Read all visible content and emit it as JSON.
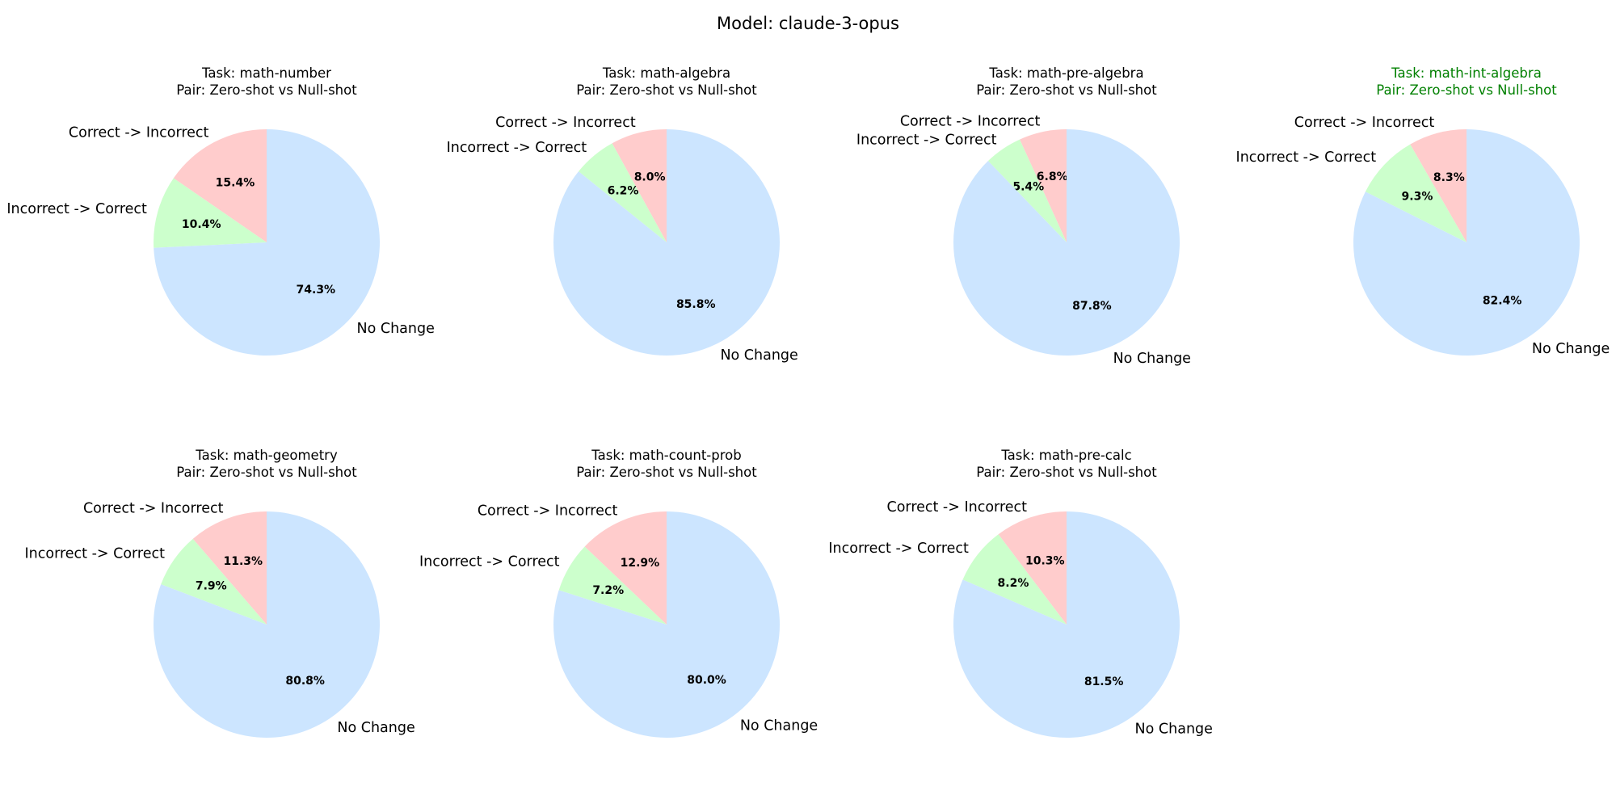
{
  "figure": {
    "suptitle": "Model: claude-3-opus"
  },
  "chart_data": [
    {
      "type": "pie",
      "title_lines": [
        "Task: math-number",
        "Pair: Zero-shot vs Null-shot"
      ],
      "title_color": "#000000",
      "labels": [
        "Correct -> Incorrect",
        "Incorrect -> Correct",
        "No Change"
      ],
      "values": [
        15.4,
        10.4,
        74.3
      ],
      "value_labels": [
        "15.4%",
        "10.4%",
        "74.3%"
      ],
      "colors": [
        "#ffcccc",
        "#ccffcc",
        "#cce5ff"
      ]
    },
    {
      "type": "pie",
      "title_lines": [
        "Task: math-algebra",
        "Pair: Zero-shot vs Null-shot"
      ],
      "title_color": "#000000",
      "labels": [
        "Correct -> Incorrect",
        "Incorrect -> Correct",
        "No Change"
      ],
      "values": [
        8.0,
        6.2,
        85.8
      ],
      "value_labels": [
        "8.0%",
        "6.2%",
        "85.8%"
      ],
      "colors": [
        "#ffcccc",
        "#ccffcc",
        "#cce5ff"
      ]
    },
    {
      "type": "pie",
      "title_lines": [
        "Task: math-pre-algebra",
        "Pair: Zero-shot vs Null-shot"
      ],
      "title_color": "#000000",
      "labels": [
        "Correct -> Incorrect",
        "Incorrect -> Correct",
        "No Change"
      ],
      "values": [
        6.8,
        5.4,
        87.8
      ],
      "value_labels": [
        "6.8%",
        "5.4%",
        "87.8%"
      ],
      "colors": [
        "#ffcccc",
        "#ccffcc",
        "#cce5ff"
      ]
    },
    {
      "type": "pie",
      "title_lines": [
        "Task: math-int-algebra",
        "Pair: Zero-shot vs Null-shot"
      ],
      "title_color": "#008000",
      "labels": [
        "Correct -> Incorrect",
        "Incorrect -> Correct",
        "No Change"
      ],
      "values": [
        8.3,
        9.3,
        82.4
      ],
      "value_labels": [
        "8.3%",
        "9.3%",
        "82.4%"
      ],
      "colors": [
        "#ffcccc",
        "#ccffcc",
        "#cce5ff"
      ]
    },
    {
      "type": "pie",
      "title_lines": [
        "Task: math-geometry",
        "Pair: Zero-shot vs Null-shot"
      ],
      "title_color": "#000000",
      "labels": [
        "Correct -> Incorrect",
        "Incorrect -> Correct",
        "No Change"
      ],
      "values": [
        11.3,
        7.9,
        80.8
      ],
      "value_labels": [
        "11.3%",
        "7.9%",
        "80.8%"
      ],
      "colors": [
        "#ffcccc",
        "#ccffcc",
        "#cce5ff"
      ]
    },
    {
      "type": "pie",
      "title_lines": [
        "Task: math-count-prob",
        "Pair: Zero-shot vs Null-shot"
      ],
      "title_color": "#000000",
      "labels": [
        "Correct -> Incorrect",
        "Incorrect -> Correct",
        "No Change"
      ],
      "values": [
        12.9,
        7.2,
        80.0
      ],
      "value_labels": [
        "12.9%",
        "7.2%",
        "80.0%"
      ],
      "colors": [
        "#ffcccc",
        "#ccffcc",
        "#cce5ff"
      ]
    },
    {
      "type": "pie",
      "title_lines": [
        "Task: math-pre-calc",
        "Pair: Zero-shot vs Null-shot"
      ],
      "title_color": "#000000",
      "labels": [
        "Correct -> Incorrect",
        "Incorrect -> Correct",
        "No Change"
      ],
      "values": [
        10.3,
        8.2,
        81.5
      ],
      "value_labels": [
        "10.3%",
        "8.2%",
        "81.5%"
      ],
      "colors": [
        "#ffcccc",
        "#ccffcc",
        "#cce5ff"
      ]
    }
  ]
}
